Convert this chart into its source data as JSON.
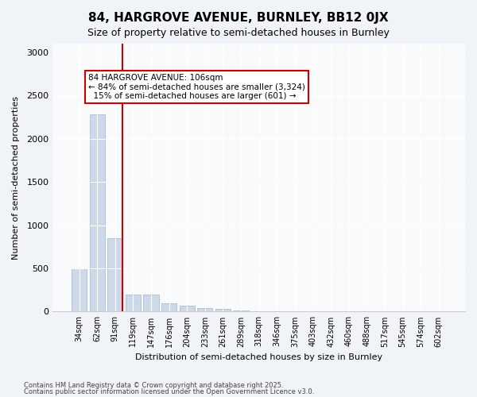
{
  "title1": "84, HARGROVE AVENUE, BURNLEY, BB12 0JX",
  "title2": "Size of property relative to semi-detached houses in Burnley",
  "xlabel": "Distribution of semi-detached houses by size in Burnley",
  "ylabel": "Number of semi-detached properties",
  "categories": [
    "34sqm",
    "62sqm",
    "91sqm",
    "119sqm",
    "147sqm",
    "176sqm",
    "204sqm",
    "233sqm",
    "261sqm",
    "289sqm",
    "318sqm",
    "346sqm",
    "375sqm",
    "403sqm",
    "432sqm",
    "460sqm",
    "488sqm",
    "517sqm",
    "545sqm",
    "574sqm",
    "602sqm"
  ],
  "values": [
    500,
    2280,
    850,
    200,
    195,
    100,
    70,
    40,
    30,
    10,
    5,
    2,
    0,
    0,
    0,
    0,
    0,
    0,
    0,
    0,
    0
  ],
  "bar_color": "#cdd9e8",
  "bar_edge_color": "#a0b4cc",
  "vline_x": 2,
  "vline_color": "#cc0000",
  "annotation_text": "84 HARGROVE AVENUE: 106sqm\n← 84% of semi-detached houses are smaller (3,324)\n  15% of semi-detached houses are larger (601) →",
  "annotation_box_color": "#cc0000",
  "ylim": [
    0,
    3100
  ],
  "yticks": [
    0,
    500,
    1000,
    1500,
    2000,
    2500,
    3000
  ],
  "footer1": "Contains HM Land Registry data © Crown copyright and database right 2025.",
  "footer2": "Contains public sector information licensed under the Open Government Licence v3.0.",
  "bg_color": "#f0f4f8",
  "plot_bg_color": "#f8fafc"
}
